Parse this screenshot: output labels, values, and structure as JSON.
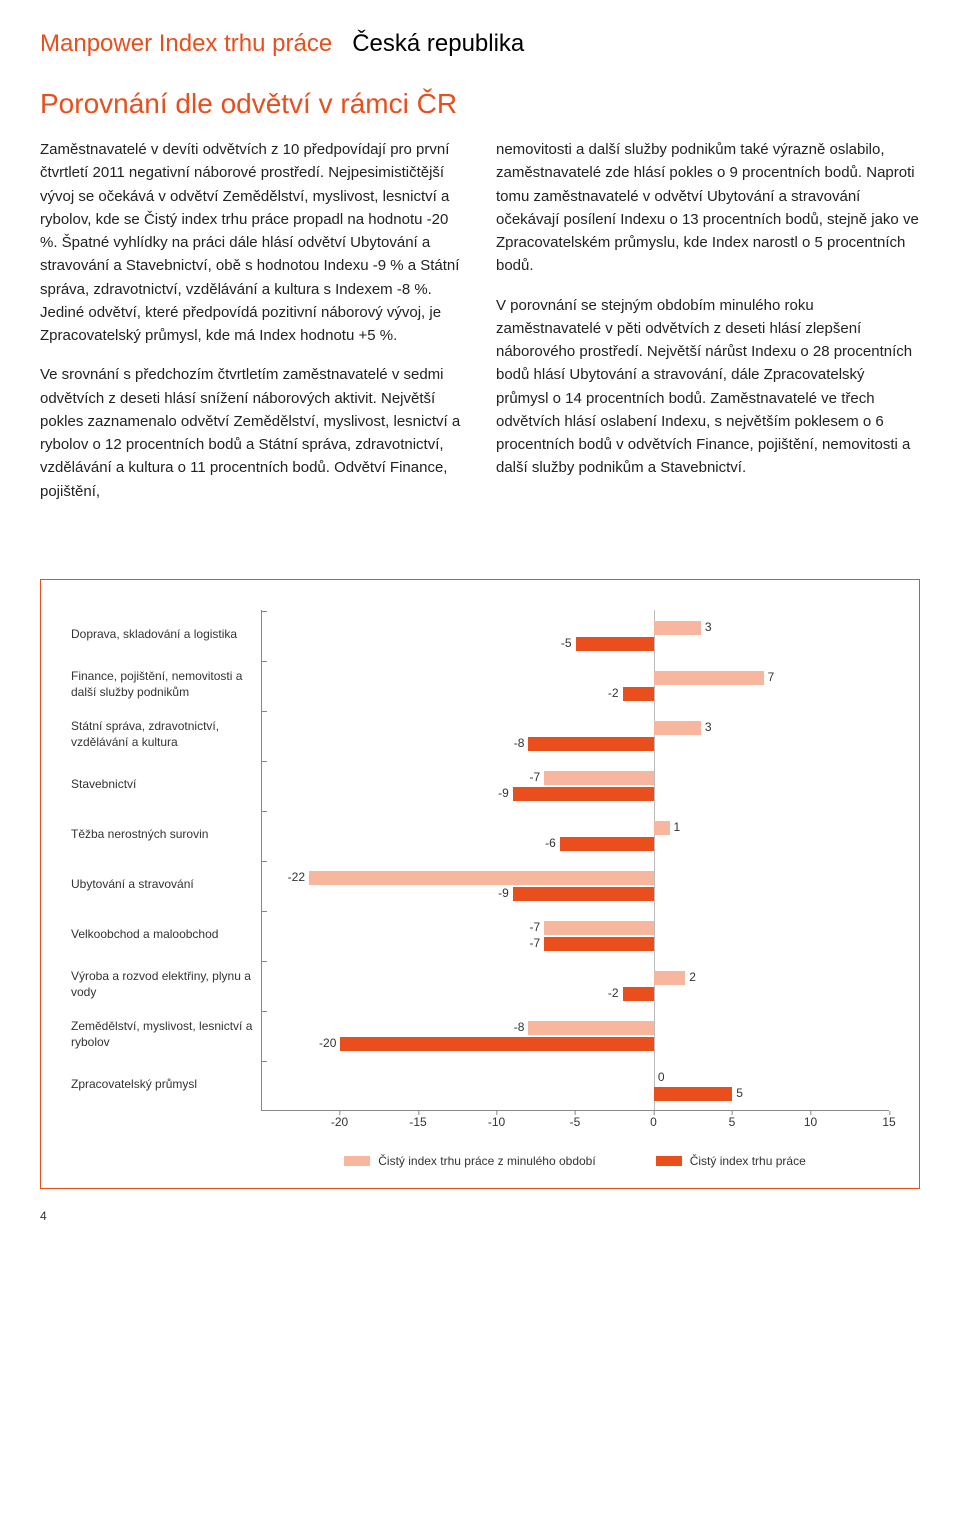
{
  "header": {
    "accent": "Manpower Index trhu práce",
    "normal": "Česká republika"
  },
  "subtitle": "Porovnání dle odvětví v rámci ČR",
  "left_column": {
    "p1": "Zaměstnavatelé v devíti odvětvích z 10 předpovídají pro první čtvrtletí 2011 negativní náborové prostředí. Nejpesimističtější vývoj se očekává v odvětví Zemědělství, myslivost, lesnictví a rybolov, kde se Čistý index trhu práce propadl na hodnotu -20 %. Špatné vyhlídky na práci dále hlásí odvětví Ubytování a stravování a Stavebnictví, obě s hodnotou Indexu -9 % a Státní správa, zdravotnictví, vzdělávání a kultura s Indexem -8 %. Jediné odvětví, které předpovídá pozitivní náborový vývoj, je Zpracovatelský průmysl, kde má Index hodnotu +5 %.",
    "p2": "Ve srovnání s předchozím čtvrtletím zaměstnavatelé v sedmi odvětvích z deseti hlásí snížení náborových aktivit. Největší pokles zaznamenalo odvětví Zemědělství, myslivost, lesnictví a rybolov o 12 procentních bodů a Státní správa, zdravotnictví, vzdělávání a kultura o 11 procentních bodů. Odvětví Finance, pojištění,"
  },
  "right_column": {
    "p1": "nemovitosti a další služby podnikům také výrazně oslabilo, zaměstnavatelé zde hlásí pokles o 9 procentních bodů. Naproti tomu zaměstnavatelé v odvětví Ubytování a stravování očekávají posílení Indexu o 13 procentních bodů, stejně jako ve Zpracovatelském průmyslu, kde Index narostl o 5 procentních bodů.",
    "p2": "V porovnání se stejným obdobím minulého roku zaměstnavatelé v pěti odvětvích z deseti hlásí zlepšení náborového prostředí. Největší nárůst Indexu o 28 procentních bodů hlásí Ubytování a stravování, dále Zpracovatelský průmysl o 14 procentních bodů. Zaměstnavatelé ve třech odvětvích hlásí oslabení Indexu, s největším poklesem o 6 procentních bodů v odvětvích Finance, pojištění, nemovitosti a další služby podnikům a Stavebnictví."
  },
  "chart": {
    "type": "grouped-horizontal-bar",
    "x_min": -25,
    "x_max": 15,
    "x_ticks": [
      -20,
      -15,
      -10,
      -5,
      0,
      5,
      10,
      15
    ],
    "colors": {
      "prev": "#f7b79f",
      "current": "#e84f1c",
      "border": "#e84f1c",
      "axis": "#888888"
    },
    "categories": [
      {
        "label": "Doprava, skladování a logistika",
        "prev": 3,
        "current": -5
      },
      {
        "label": "Finance, pojištění, nemovitosti a další služby podnikům",
        "prev": 7,
        "current": -2
      },
      {
        "label": "Státní správa, zdravotnictví, vzdělávání a kultura",
        "prev": 3,
        "current": -8
      },
      {
        "label": "Stavebnictví",
        "prev": -7,
        "current": -9
      },
      {
        "label": "Těžba nerostných surovin",
        "prev": 1,
        "current": -6
      },
      {
        "label": "Ubytování a stravování",
        "prev": -22,
        "current": -9
      },
      {
        "label": "Velkoobchod a maloobchod",
        "prev": -7,
        "current": -7
      },
      {
        "label": "Výroba a rozvod elektřiny, plynu a vody",
        "prev": 2,
        "current": -2
      },
      {
        "label": "Zemědělství, myslivost, lesnictví a rybolov",
        "prev": -8,
        "current": -20
      },
      {
        "label": "Zpracovatelský průmysl",
        "prev": 0,
        "current": 5
      }
    ],
    "legend": {
      "prev": "Čistý index trhu práce z minulého období",
      "current": "Čistý index trhu práce"
    }
  },
  "page_number": "4"
}
